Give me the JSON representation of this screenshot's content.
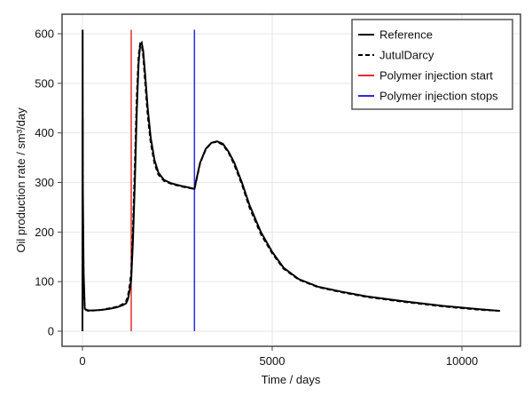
{
  "chart_data": {
    "type": "line",
    "title": "",
    "xlabel": "Time / days",
    "ylabel": "Oil production rate / sm³/day",
    "xlim": [
      -550,
      11500
    ],
    "ylim": [
      -30,
      640
    ],
    "xticks": [
      0,
      5000,
      10000
    ],
    "yticks": [
      0,
      100,
      200,
      300,
      400,
      500,
      600
    ],
    "grid": true,
    "legend_position": "top-right",
    "series": [
      {
        "name": "Reference",
        "style": "solid",
        "color": "#000000",
        "x": [
          0,
          5,
          10,
          30,
          60,
          150,
          300,
          500,
          700,
          900,
          1050,
          1150,
          1200,
          1250,
          1285,
          1330,
          1380,
          1430,
          1480,
          1520,
          1560,
          1600,
          1650,
          1720,
          1800,
          1900,
          2000,
          2150,
          2350,
          2600,
          2800,
          2950,
          3000,
          3100,
          3250,
          3400,
          3550,
          3700,
          3850,
          4000,
          4200,
          4400,
          4700,
          5000,
          5300,
          5700,
          6200,
          6800,
          7500,
          8500,
          9500,
          10500,
          11000
        ],
        "y": [
          0,
          608,
          300,
          120,
          45,
          42,
          42,
          43,
          45,
          48,
          52,
          56,
          65,
          85,
          105,
          180,
          300,
          440,
          540,
          578,
          582,
          565,
          520,
          450,
          390,
          345,
          320,
          305,
          298,
          293,
          290,
          287,
          305,
          340,
          368,
          380,
          383,
          378,
          362,
          340,
          300,
          255,
          200,
          160,
          128,
          105,
          90,
          80,
          70,
          60,
          51,
          44,
          41
        ]
      },
      {
        "name": "JutulDarcy",
        "style": "dashed",
        "color": "#000000",
        "x": [
          0,
          5,
          10,
          30,
          60,
          150,
          300,
          500,
          700,
          900,
          1050,
          1150,
          1200,
          1250,
          1285,
          1330,
          1380,
          1430,
          1480,
          1520,
          1560,
          1600,
          1650,
          1720,
          1800,
          1900,
          2000,
          2150,
          2350,
          2600,
          2800,
          2950,
          3000,
          3100,
          3250,
          3400,
          3550,
          3700,
          3850,
          4000,
          4200,
          4400,
          4700,
          5000,
          5300,
          5700,
          6200,
          6800,
          7500,
          8500,
          9500,
          10500,
          11000
        ],
        "y": [
          0,
          430,
          250,
          100,
          44,
          41,
          42,
          43,
          46,
          49,
          54,
          60,
          72,
          95,
          120,
          205,
          335,
          470,
          555,
          580,
          578,
          555,
          505,
          435,
          380,
          338,
          316,
          303,
          297,
          292,
          289,
          287,
          304,
          339,
          367,
          380,
          382,
          376,
          360,
          336,
          296,
          250,
          196,
          157,
          126,
          104,
          89,
          79,
          69,
          59,
          50,
          43,
          41
        ]
      },
      {
        "name": "Polymer injection start",
        "style": "vline",
        "color": "#e0302a",
        "x": [
          1285,
          1285
        ],
        "y": [
          0,
          608
        ]
      },
      {
        "name": "Polymer injection stops",
        "style": "vline",
        "color": "#2a2ae0",
        "x": [
          2950,
          2950
        ],
        "y": [
          0,
          608
        ]
      }
    ]
  }
}
